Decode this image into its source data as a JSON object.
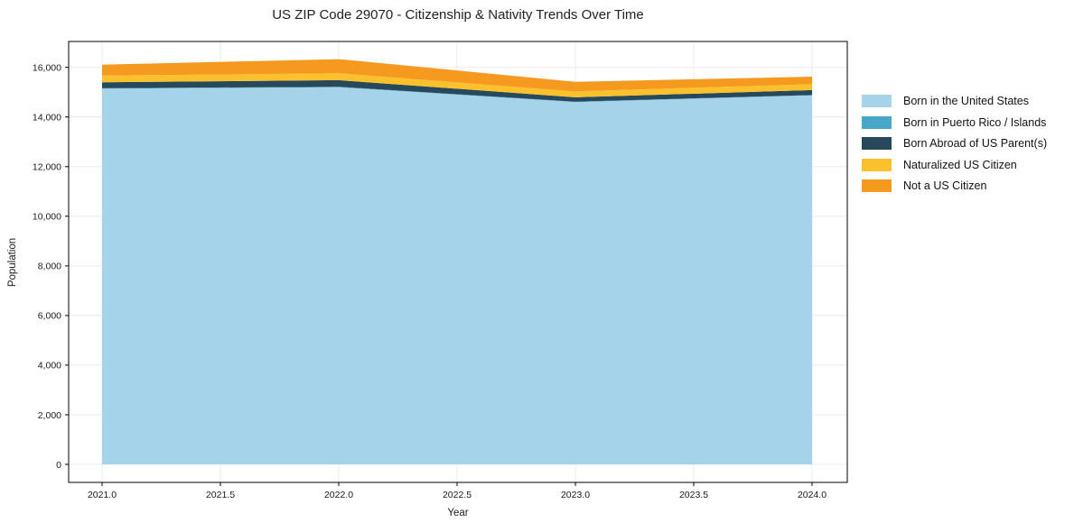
{
  "title": "US ZIP Code 29070 - Citizenship & Nativity Trends Over Time",
  "chart_data": {
    "type": "area",
    "stacked": true,
    "title": "US ZIP Code 29070 - Citizenship & Nativity Trends Over Time",
    "xlabel": "Year",
    "ylabel": "Population",
    "x": [
      2021,
      2022,
      2023,
      2024
    ],
    "series": [
      {
        "name": "Born in the United States",
        "color": "#a5d3e9",
        "values": [
          15140,
          15200,
          14600,
          14870
        ]
      },
      {
        "name": "Born in Puerto Rico / Islands",
        "color": "#48a7c7",
        "values": [
          20,
          20,
          15,
          15
        ]
      },
      {
        "name": "Born Abroad of US Parent(s)",
        "color": "#28495c",
        "values": [
          240,
          265,
          180,
          200
        ]
      },
      {
        "name": "Naturalized US Citizen",
        "color": "#fbc12d",
        "values": [
          270,
          275,
          235,
          240
        ]
      },
      {
        "name": "Not a US Citizen",
        "color": "#f6991f",
        "values": [
          440,
          570,
          390,
          300
        ]
      }
    ],
    "xticks": [
      2021.0,
      2021.5,
      2022.0,
      2022.5,
      2023.0,
      2023.5,
      2024.0
    ],
    "xtick_labels": [
      "2021.0",
      "2021.5",
      "2022.0",
      "2022.5",
      "2023.0",
      "2023.5",
      "2024.0"
    ],
    "yticks": [
      0,
      2000,
      4000,
      6000,
      8000,
      10000,
      12000,
      14000,
      16000
    ],
    "ytick_labels": [
      "0",
      "2,000",
      "4,000",
      "6,000",
      "8,000",
      "10,000",
      "12,000",
      "14,000",
      "16,000"
    ],
    "ylim": [
      -730,
      17040
    ],
    "grid": true,
    "legend_position": "right"
  }
}
